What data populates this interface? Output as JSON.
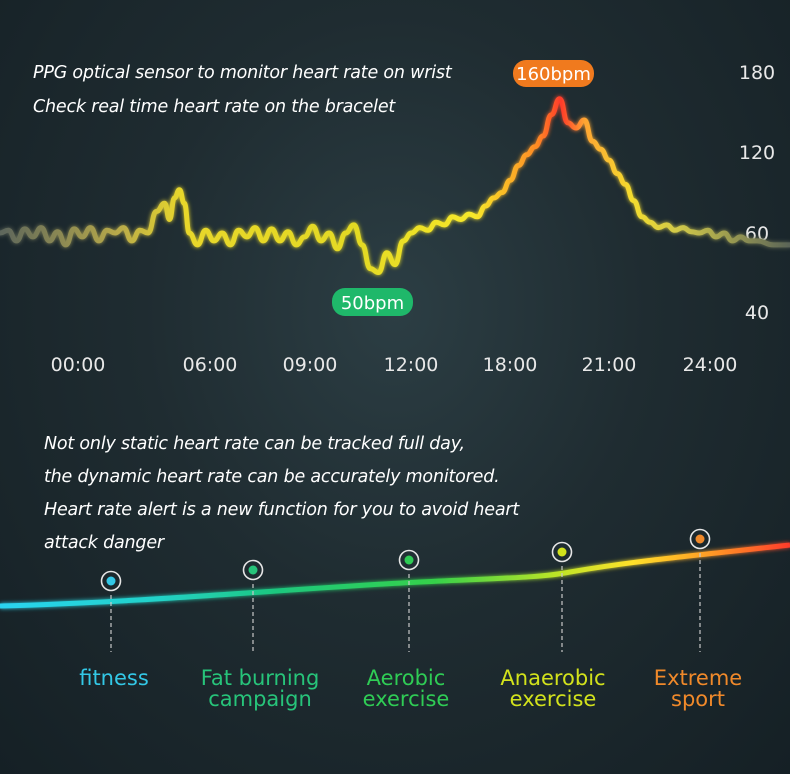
{
  "captions": {
    "top": [
      "PPG optical sensor to monitor heart rate on wrist",
      "Check real time heart rate on the bracelet"
    ],
    "middle": [
      "Not only static heart rate can be tracked full day,",
      "the dynamic heart rate can be accurately monitored.",
      "Heart rate alert is a new function for you to avoid heart",
      "attack danger"
    ]
  },
  "chart_data": {
    "type": "line",
    "title": "",
    "xlabel": "",
    "ylabel": "",
    "x_tick_labels": [
      "00:00",
      "06:00",
      "09:00",
      "12:00",
      "18:00",
      "21:00",
      "24:00"
    ],
    "y_tick_labels": [
      "180",
      "120",
      "60",
      "40"
    ],
    "y_tick_values": [
      180,
      120,
      60,
      40
    ],
    "annotations": {
      "max": {
        "label": "160bpm",
        "color": "#f07a1e"
      },
      "min": {
        "label": "50bpm",
        "color": "#1fb86a"
      }
    },
    "series": [
      {
        "points": [
          [
            0,
            60
          ],
          [
            0.25,
            62
          ],
          [
            0.5,
            58
          ],
          [
            0.75,
            63
          ],
          [
            1,
            59
          ],
          [
            1.25,
            64
          ],
          [
            1.5,
            58
          ],
          [
            1.75,
            61
          ],
          [
            2,
            57
          ],
          [
            2.25,
            63
          ],
          [
            2.5,
            59
          ],
          [
            2.75,
            64
          ],
          [
            3,
            58
          ],
          [
            3.25,
            62
          ],
          [
            3.5,
            60
          ],
          [
            3.75,
            64
          ],
          [
            4,
            58
          ],
          [
            4.25,
            62
          ],
          [
            4.5,
            60
          ],
          [
            4.75,
            76
          ],
          [
            5,
            82
          ],
          [
            5.15,
            70
          ],
          [
            5.3,
            86
          ],
          [
            5.45,
            92
          ],
          [
            5.6,
            82
          ],
          [
            5.75,
            60
          ],
          [
            6,
            57
          ],
          [
            6.25,
            62
          ],
          [
            6.5,
            58
          ],
          [
            6.75,
            60
          ],
          [
            7,
            57
          ],
          [
            7.25,
            62
          ],
          [
            7.5,
            59
          ],
          [
            7.75,
            64
          ],
          [
            8,
            58
          ],
          [
            8.25,
            63
          ],
          [
            8.5,
            58
          ],
          [
            8.75,
            61
          ],
          [
            9,
            57
          ],
          [
            9.25,
            59
          ],
          [
            9.5,
            65
          ],
          [
            9.75,
            58
          ],
          [
            10,
            60
          ],
          [
            10.25,
            56
          ],
          [
            10.5,
            60
          ],
          [
            10.75,
            66
          ],
          [
            11,
            57
          ],
          [
            11.25,
            51
          ],
          [
            11.5,
            50
          ],
          [
            11.75,
            55
          ],
          [
            12,
            52
          ],
          [
            12.25,
            58
          ],
          [
            12.5,
            60
          ],
          [
            12.75,
            64
          ],
          [
            13,
            62
          ],
          [
            13.25,
            68
          ],
          [
            13.5,
            66
          ],
          [
            13.75,
            72
          ],
          [
            14,
            70
          ],
          [
            14.25,
            74
          ],
          [
            14.5,
            72
          ],
          [
            14.75,
            80
          ],
          [
            15,
            86
          ],
          [
            15.25,
            90
          ],
          [
            15.5,
            99
          ],
          [
            15.75,
            110
          ],
          [
            16,
            118
          ],
          [
            16.25,
            124
          ],
          [
            16.5,
            132
          ],
          [
            16.75,
            148
          ],
          [
            17,
            160
          ],
          [
            17.25,
            142
          ],
          [
            17.5,
            138
          ],
          [
            17.75,
            144
          ],
          [
            18,
            128
          ],
          [
            18.25,
            122
          ],
          [
            18.5,
            114
          ],
          [
            18.75,
            104
          ],
          [
            19,
            96
          ],
          [
            19.25,
            84
          ],
          [
            19.5,
            72
          ],
          [
            19.75,
            68
          ],
          [
            20,
            64
          ],
          [
            20.25,
            66
          ],
          [
            20.5,
            62
          ],
          [
            20.75,
            64
          ],
          [
            21,
            61
          ],
          [
            21.25,
            60
          ],
          [
            21.5,
            62
          ],
          [
            21.75,
            59
          ],
          [
            22,
            60
          ],
          [
            22.25,
            58
          ],
          [
            22.5,
            59
          ],
          [
            22.75,
            58
          ],
          [
            23,
            58
          ],
          [
            23.5,
            57
          ],
          [
            24,
            57
          ]
        ]
      }
    ]
  },
  "zones": [
    {
      "label_lines": [
        "fitness"
      ],
      "color": "#33c8e6"
    },
    {
      "label_lines": [
        "Fat burning",
        "campaign"
      ],
      "color": "#27c47a"
    },
    {
      "label_lines": [
        "Aerobic",
        "exercise"
      ],
      "color": "#2fcc55"
    },
    {
      "label_lines": [
        "Anaerobic",
        "exercise"
      ],
      "color": "#d2e21c"
    },
    {
      "label_lines": [
        "Extreme",
        "sport"
      ],
      "color": "#f0892a"
    }
  ]
}
